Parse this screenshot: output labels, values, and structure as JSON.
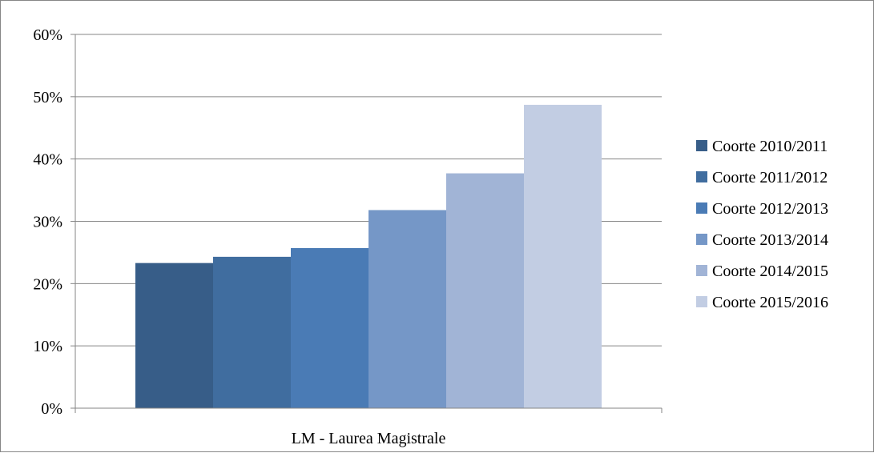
{
  "chart_data": {
    "type": "bar",
    "categories": [
      "LM - Laurea Magistrale"
    ],
    "series": [
      {
        "name": "Coorte 2010/2011",
        "values": [
          23.3
        ],
        "color": "#375d88"
      },
      {
        "name": "Coorte 2011/2012",
        "values": [
          24.3
        ],
        "color": "#406d9f"
      },
      {
        "name": "Coorte 2012/2013",
        "values": [
          25.7
        ],
        "color": "#4a7bb5"
      },
      {
        "name": "Coorte 2013/2014",
        "values": [
          31.8
        ],
        "color": "#7597c7"
      },
      {
        "name": "Coorte 2014/2015",
        "values": [
          37.7
        ],
        "color": "#a1b4d6"
      },
      {
        "name": "Coorte 2015/2016",
        "values": [
          48.7
        ],
        "color": "#c2cde3"
      }
    ],
    "title": "",
    "xlabel": "",
    "ylabel": "",
    "ylim": [
      0,
      60
    ],
    "yticks": [
      0,
      10,
      20,
      30,
      40,
      50,
      60
    ],
    "ytick_labels": [
      "0%",
      "10%",
      "20%",
      "30%",
      "40%",
      "50%",
      "60%"
    ],
    "grid": true,
    "legend_position": "right"
  }
}
